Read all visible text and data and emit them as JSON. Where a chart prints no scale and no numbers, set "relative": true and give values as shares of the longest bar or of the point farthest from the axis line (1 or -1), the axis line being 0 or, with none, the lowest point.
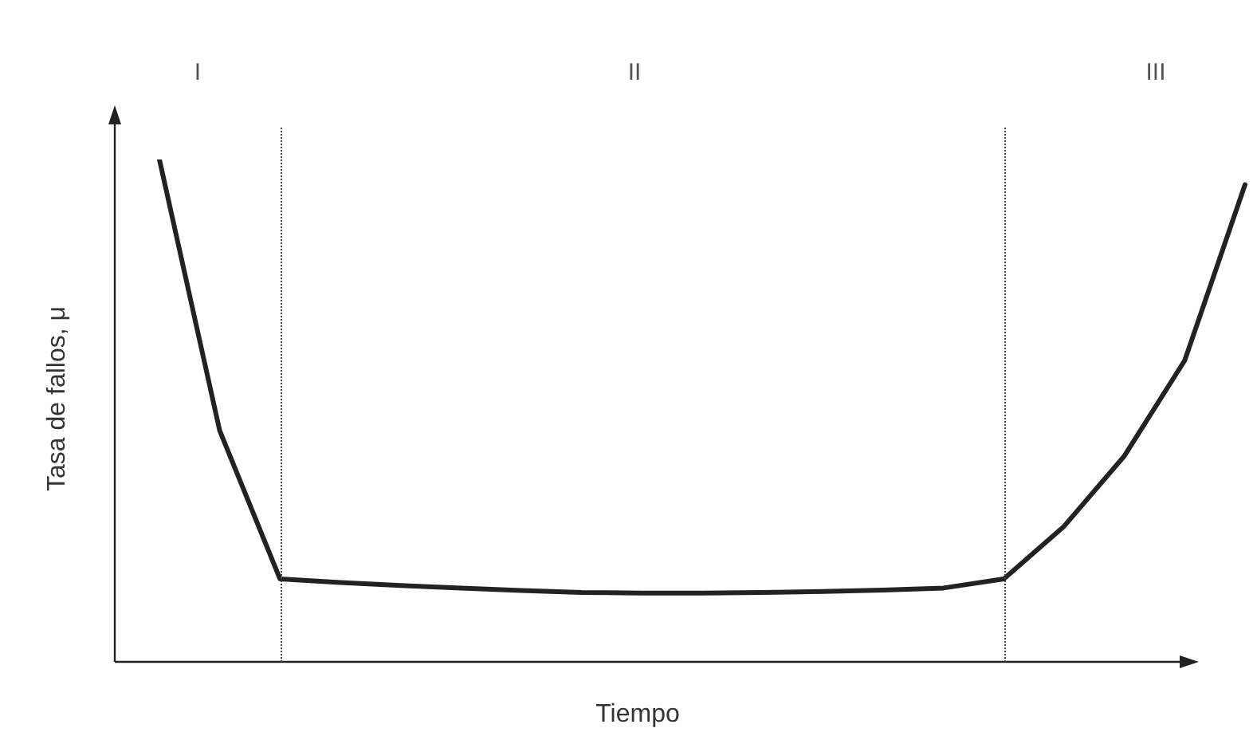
{
  "chart_data": {
    "type": "line",
    "relative": true,
    "xlabel": "Tiempo",
    "ylabel": "Tasa de fallos, μ",
    "categories": [
      null,
      null,
      null,
      null,
      null,
      null,
      null,
      null,
      null,
      null,
      null,
      null,
      null,
      null,
      null,
      null,
      null,
      null,
      null
    ],
    "series": [
      {
        "color": "#222222",
        "values": [
          1.0,
          0.46,
          0.165,
          0.158,
          0.152,
          0.147,
          0.142,
          0.138,
          0.137,
          0.137,
          0.138,
          0.14,
          0.143,
          0.147,
          0.165,
          0.27,
          0.41,
          0.6,
          0.95
        ]
      }
    ],
    "annotations": [
      "I",
      "II",
      "III"
    ]
  }
}
